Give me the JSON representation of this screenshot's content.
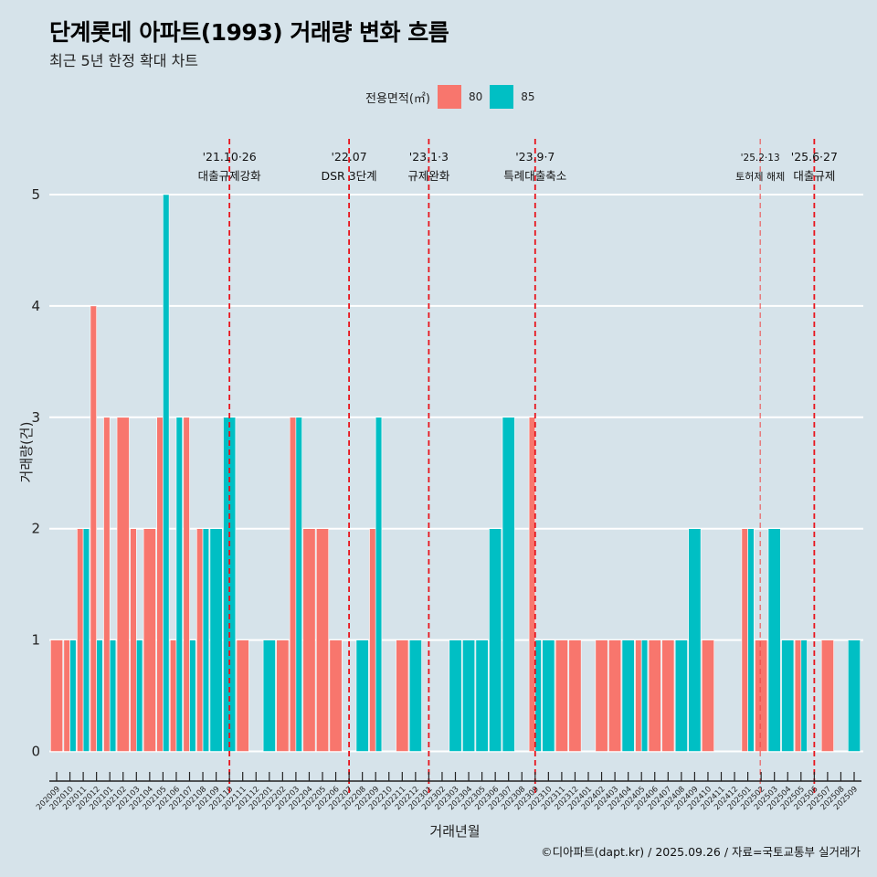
{
  "header": {
    "title": "단계롯데 아파트(1993) 거래량 변화 흐름",
    "subtitle": "최근 5년 한정 확대 차트"
  },
  "legend": {
    "title": "전용면적(㎡)",
    "items": [
      {
        "label": "80",
        "color": "#f8766d"
      },
      {
        "label": "85",
        "color": "#00bfc4"
      }
    ]
  },
  "caption": "©디아파트(dapt.kr) / 2025.09.26 / 자료=국토교통부 실거래가",
  "chart_data": {
    "type": "bar",
    "layout": "dodge",
    "title": "단계롯데 아파트(1993) 거래량 변화 흐름",
    "subtitle": "최근 5년 한정 확대 차트",
    "xlabel": "거래년월",
    "ylabel": "거래량(건)",
    "ylim": [
      -0.25,
      5.5
    ],
    "yticks": [
      0,
      1,
      2,
      3,
      4,
      5
    ],
    "grid": "horizontal major",
    "legend_position": "top",
    "categories": [
      "202009",
      "202010",
      "202011",
      "202012",
      "202101",
      "202102",
      "202103",
      "202104",
      "202105",
      "202106",
      "202107",
      "202108",
      "202109",
      "202110",
      "202111",
      "202112",
      "202201",
      "202202",
      "202203",
      "202204",
      "202205",
      "202206",
      "202207",
      "202208",
      "202209",
      "202210",
      "202211",
      "202212",
      "202301",
      "202302",
      "202303",
      "202304",
      "202305",
      "202306",
      "202307",
      "202308",
      "202309",
      "202310",
      "202311",
      "202312",
      "202401",
      "202402",
      "202403",
      "202404",
      "202405",
      "202406",
      "202407",
      "202408",
      "202409",
      "202410",
      "202411",
      "202412",
      "202501",
      "202502",
      "202503",
      "202504",
      "202505",
      "202506",
      "202507",
      "202508",
      "202509"
    ],
    "series": [
      {
        "name": "80",
        "color": "#f8766d",
        "values": [
          1,
          1,
          2,
          4,
          3,
          3,
          2,
          2,
          3,
          1,
          3,
          2,
          0,
          0,
          1,
          0,
          0,
          1,
          3,
          2,
          2,
          1,
          0,
          0,
          2,
          0,
          1,
          0,
          0,
          0,
          0,
          0,
          0,
          0,
          0,
          0,
          3,
          0,
          1,
          1,
          0,
          1,
          1,
          0,
          1,
          1,
          1,
          0,
          0,
          1,
          0,
          0,
          2,
          1,
          0,
          0,
          1,
          0,
          1,
          0,
          0
        ]
      },
      {
        "name": "85",
        "color": "#00bfc4",
        "values": [
          0,
          1,
          2,
          1,
          1,
          0,
          1,
          0,
          5,
          3,
          1,
          2,
          2,
          3,
          0,
          0,
          1,
          0,
          3,
          0,
          0,
          0,
          0,
          1,
          3,
          0,
          0,
          1,
          0,
          0,
          1,
          1,
          1,
          2,
          3,
          0,
          1,
          1,
          0,
          0,
          0,
          0,
          0,
          1,
          1,
          0,
          0,
          1,
          2,
          0,
          0,
          0,
          2,
          0,
          2,
          1,
          1,
          0,
          0,
          0,
          1
        ]
      }
    ],
    "events": [
      {
        "x": "202110",
        "date": "'21.10·26",
        "label": "대출규제강화",
        "style": "bold"
      },
      {
        "x": "202207",
        "date": "'22.07",
        "label": "DSR 3단계",
        "style": "bold"
      },
      {
        "x": "202301",
        "date": "'23.1·3",
        "label": "규제완화",
        "style": "bold"
      },
      {
        "x": "202309",
        "date": "'23.9·7",
        "label": "특례대출축소",
        "style": "bold"
      },
      {
        "x": "202502",
        "date": "'25.2·13",
        "label": "토허제 해제",
        "style": "thin"
      },
      {
        "x": "202506",
        "date": "'25.6·27",
        "label": "대출규제",
        "style": "bold"
      }
    ]
  }
}
